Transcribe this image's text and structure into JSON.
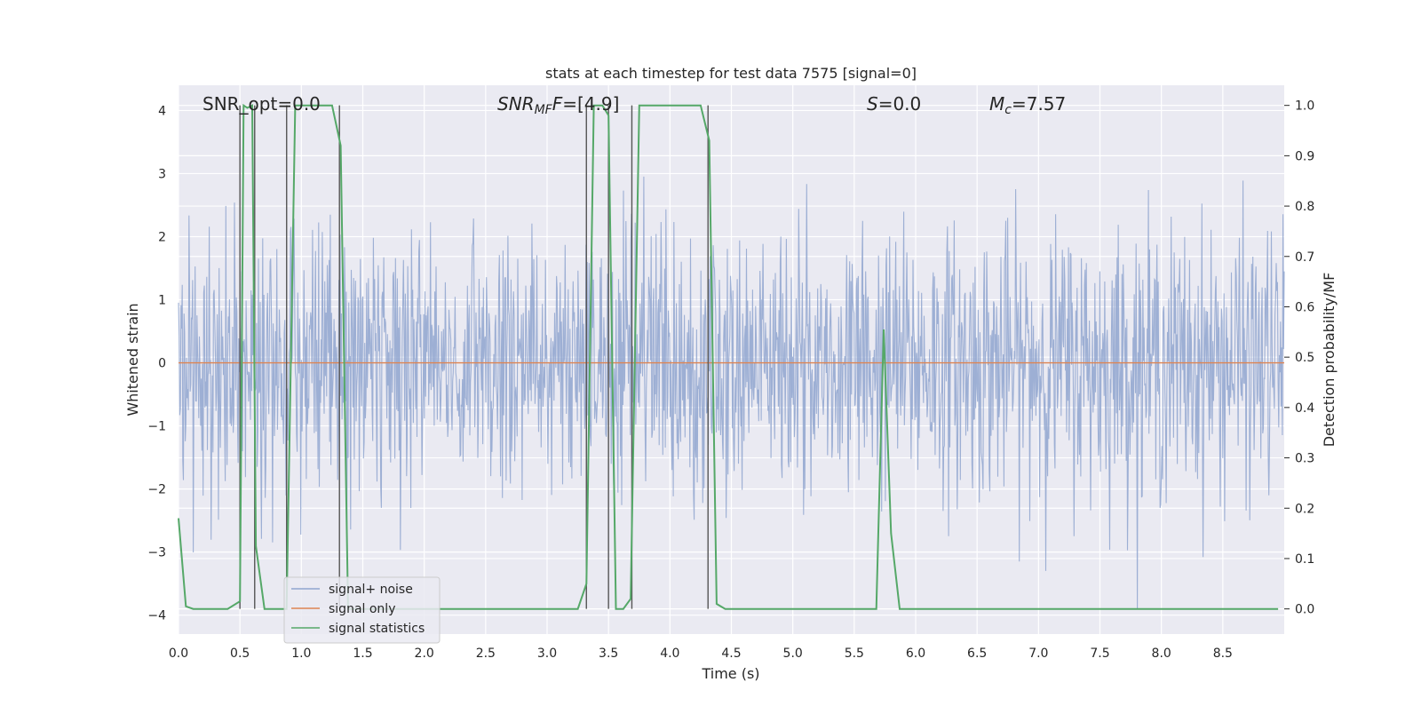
{
  "chart_data": {
    "type": "line",
    "title": "stats at each timestep for test data 7575 [signal=0]",
    "xlabel": "Time (s)",
    "ylabel_left": "Whitened strain",
    "ylabel_right": "Detection probability/MF",
    "xlim": [
      0.0,
      9.0
    ],
    "ylim_left": [
      -4.3,
      4.4
    ],
    "ylim_right": [
      -0.05,
      1.04
    ],
    "x_ticks": [
      "0.0",
      "0.5",
      "1.0",
      "1.5",
      "2.0",
      "2.5",
      "3.0",
      "3.5",
      "4.0",
      "4.5",
      "5.0",
      "5.5",
      "6.0",
      "6.5",
      "7.0",
      "7.5",
      "8.0",
      "8.5"
    ],
    "y_ticks_left": [
      "−4",
      "−3",
      "−2",
      "−1",
      "0",
      "1",
      "2",
      "3",
      "4"
    ],
    "y_ticks_right": [
      "0.0",
      "0.1",
      "0.2",
      "0.3",
      "0.4",
      "0.5",
      "0.6",
      "0.7",
      "0.8",
      "0.9",
      "1.0"
    ],
    "grid": true,
    "legend_position": "lower-left",
    "annotations": {
      "snr_opt_prefix": "SNR_opt=",
      "snr_opt_value": "0.0",
      "snr_mf_main": "SNR",
      "snr_mf_sub": "MF",
      "snr_mf_tail": "=[4.9]",
      "s_main": "S",
      "s_tail": "=0.0",
      "mc_main": "M",
      "mc_sub": "c",
      "mc_tail": "=7.57"
    },
    "series": [
      {
        "name": "signal+ noise",
        "color": "#8fa5cf",
        "description_axis": "left",
        "amplitude_envelope": {
          "typical_range": [
            -1.5,
            1.6
          ],
          "peak_range": [
            -3.9,
            3.9
          ]
        }
      },
      {
        "name": "signal only",
        "color": "#dd8452",
        "axis": "left",
        "values": [
          0,
          0
        ]
      },
      {
        "name": "signal statistics",
        "color": "#55a868",
        "axis": "right",
        "x": [
          0.0,
          0.06,
          0.12,
          0.2,
          0.4,
          0.5,
          0.53,
          0.56,
          0.6,
          0.63,
          0.7,
          0.75,
          0.82,
          0.88,
          0.95,
          1.0,
          1.1,
          1.25,
          1.32,
          1.38,
          1.42,
          1.6,
          2.0,
          3.0,
          3.25,
          3.32,
          3.38,
          3.45,
          3.5,
          3.56,
          3.62,
          3.68,
          3.75,
          4.0,
          4.25,
          4.32,
          4.38,
          4.45,
          5.0,
          5.6,
          5.68,
          5.74,
          5.8,
          5.87,
          6.0,
          7.0,
          8.0,
          8.95
        ],
        "values": [
          0.18,
          0.005,
          0.0,
          0.0,
          0.0,
          0.015,
          1.0,
          0.995,
          1.0,
          0.125,
          0.0,
          0.0,
          0.0,
          0.0,
          1.0,
          1.0,
          1.0,
          1.0,
          0.92,
          0.0,
          0.0,
          0.0,
          0.0,
          0.0,
          0.0,
          0.05,
          1.0,
          1.0,
          0.98,
          0.0,
          0.0,
          0.02,
          1.0,
          1.0,
          1.0,
          0.93,
          0.01,
          0.0,
          0.0,
          0.0,
          0.0,
          0.555,
          0.15,
          0.0,
          0.0,
          0.0,
          0.0,
          0.0
        ]
      }
    ],
    "vertical_markers_x": [
      0.5,
      0.62,
      0.88,
      1.31,
      3.32,
      3.5,
      3.69,
      4.31
    ],
    "legend_entries": [
      "signal+ noise",
      "signal only",
      "signal statistics"
    ]
  }
}
